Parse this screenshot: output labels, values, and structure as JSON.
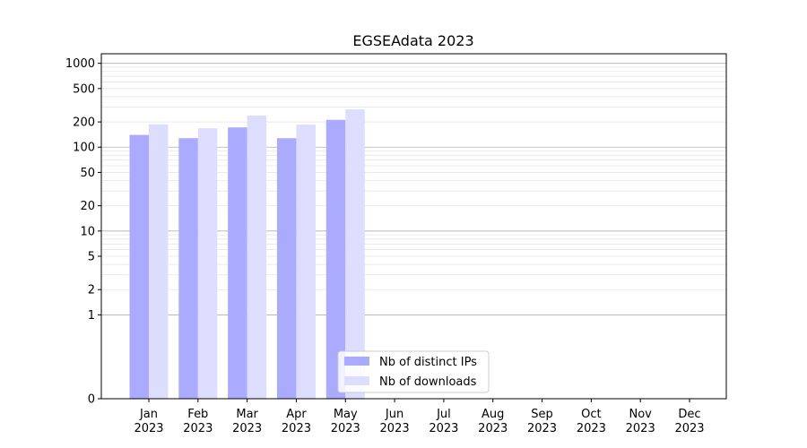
{
  "chart_data": {
    "type": "bar",
    "title": "EGSEAdata 2023",
    "xlabel": "",
    "ylabel": "",
    "categories": [
      [
        "Jan",
        "2023"
      ],
      [
        "Feb",
        "2023"
      ],
      [
        "Mar",
        "2023"
      ],
      [
        "Apr",
        "2023"
      ],
      [
        "May",
        "2023"
      ],
      [
        "Jun",
        "2023"
      ],
      [
        "Jul",
        "2023"
      ],
      [
        "Aug",
        "2023"
      ],
      [
        "Sep",
        "2023"
      ],
      [
        "Oct",
        "2023"
      ],
      [
        "Nov",
        "2023"
      ],
      [
        "Dec",
        "2023"
      ]
    ],
    "series": [
      {
        "name": "Nb of distinct IPs",
        "color": "#aaaaff",
        "values": [
          140,
          128,
          172,
          128,
          212,
          null,
          null,
          null,
          null,
          null,
          null,
          null
        ]
      },
      {
        "name": "Nb of downloads",
        "color": "#ddddff",
        "values": [
          187,
          168,
          238,
          186,
          282,
          null,
          null,
          null,
          null,
          null,
          null,
          null
        ]
      }
    ],
    "y_scale": "symlog",
    "y_ticks": [
      0,
      1,
      2,
      5,
      10,
      20,
      50,
      100,
      200,
      500,
      1000
    ],
    "y_tick_labels": [
      "0",
      "1",
      "2",
      "5",
      "10",
      "20",
      "50",
      "100",
      "200",
      "500",
      "1000"
    ],
    "ylim": [
      0,
      1300
    ],
    "grid": "horizontal",
    "legend_position": "lower center"
  }
}
